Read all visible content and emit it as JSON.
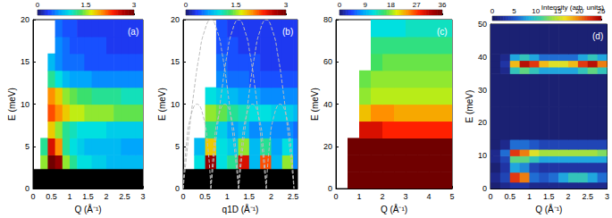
{
  "chart_data": [
    {
      "type": "heatmap",
      "title": "(a)",
      "xlabel": "Q (Å⁻¹)",
      "ylabel": "E (meV)",
      "xlim": [
        0,
        3
      ],
      "xticks": [
        0,
        0.5,
        1,
        1.5,
        2,
        2.5,
        3
      ],
      "ylim": [
        0,
        20
      ],
      "yticks": [
        0,
        5,
        10,
        15,
        20
      ],
      "x_edges": [
        0,
        0.2,
        0.4,
        0.6,
        0.8,
        1,
        1.2,
        1.4,
        1.6,
        1.8,
        2,
        2.2,
        2.4,
        2.6,
        2.8,
        3
      ],
      "y_edges": [
        0,
        2,
        4,
        6,
        8,
        10,
        12,
        14,
        16,
        18,
        20
      ],
      "z": [
        [
          null,
          null,
          null,
          null,
          null,
          null,
          null,
          null,
          null,
          null,
          null,
          null,
          null,
          null,
          null
        ],
        [
          null,
          1.5,
          3,
          2.8,
          1.5,
          1.2,
          1,
          1,
          0.9,
          0.9,
          0.8,
          0.8,
          0.8,
          0.8,
          0.8
        ],
        [
          null,
          1.2,
          2.5,
          2,
          1.2,
          1,
          0.9,
          0.8,
          0.8,
          0.8,
          0.8,
          0.8,
          0.7,
          0.7,
          0.7
        ],
        [
          null,
          null,
          1.8,
          1.5,
          1.2,
          1.1,
          1,
          1,
          1,
          1,
          0.9,
          0.9,
          0.9,
          0.9,
          0.9
        ],
        [
          null,
          null,
          2.2,
          2,
          1.8,
          1.6,
          1.6,
          1.5,
          1.5,
          1.5,
          1.5,
          1.4,
          1.4,
          1.4,
          1.4
        ],
        [
          null,
          null,
          2,
          1.8,
          1.5,
          1.4,
          1.3,
          1.3,
          1.2,
          1.2,
          1.2,
          1.2,
          1.1,
          1.1,
          1.1
        ],
        [
          null,
          null,
          1.2,
          1,
          0.8,
          0.7,
          0.7,
          0.7,
          0.6,
          0.6,
          0.6,
          0.6,
          0.6,
          0.6,
          0.6
        ],
        [
          null,
          null,
          0.8,
          0.6,
          0.5,
          0.5,
          0.5,
          0.4,
          0.4,
          0.4,
          0.4,
          0.4,
          0.4,
          0.4,
          0.4
        ],
        [
          null,
          null,
          null,
          0.6,
          0.5,
          0.4,
          0.4,
          0.4,
          0.4,
          0.4,
          0.3,
          0.3,
          0.3,
          0.3,
          0.3
        ],
        [
          null,
          null,
          null,
          0.5,
          0.4,
          0.4,
          0.3,
          0.3,
          0.3,
          0.3,
          0.3,
          0.3,
          0.3,
          0.3,
          0.3
        ]
      ],
      "masked_below": 2.3,
      "colorbar": {
        "range": [
          0,
          3
        ],
        "ticks": [
          0,
          1.5,
          3
        ],
        "colors": [
          "#1c1c6e",
          "#1e3cff",
          "#00a0ff",
          "#00e0e0",
          "#40e060",
          "#e0f000",
          "#ff9000",
          "#ff2000",
          "#b00000",
          "#700000"
        ]
      }
    },
    {
      "type": "heatmap",
      "title": "(b)",
      "xlabel": "q1D (Å⁻¹)",
      "ylabel": "E (meV)",
      "xlim": [
        0,
        2.6
      ],
      "xticks": [
        0,
        0.5,
        1,
        1.5,
        2,
        2.5
      ],
      "ylim": [
        0,
        20
      ],
      "yticks": [
        0,
        5,
        10,
        15,
        20
      ],
      "x_edges": [
        0,
        0.25,
        0.5,
        0.75,
        1,
        1.25,
        1.5,
        1.75,
        2,
        2.25,
        2.5,
        2.6
      ],
      "y_edges": [
        0,
        2,
        4,
        6,
        8,
        10,
        12,
        14,
        16,
        18,
        20
      ],
      "z": [
        [
          null,
          null,
          null,
          null,
          null,
          null,
          null,
          null,
          null,
          null,
          null
        ],
        [
          null,
          1,
          2.8,
          1,
          1.2,
          2.5,
          0.8,
          2.2,
          0.8,
          1.5,
          0.6
        ],
        [
          null,
          0.8,
          1.8,
          1,
          0.9,
          1.5,
          0.8,
          1.2,
          0.7,
          1,
          0.6
        ],
        [
          null,
          null,
          1.2,
          0.9,
          0.7,
          0.8,
          0.6,
          0.7,
          0.6,
          0.6,
          0.5
        ],
        [
          null,
          null,
          1.5,
          1.4,
          1.2,
          1.1,
          1,
          1,
          0.9,
          0.9,
          0.8
        ],
        [
          null,
          null,
          1,
          0.9,
          0.8,
          0.7,
          0.7,
          0.6,
          0.6,
          0.6,
          0.6
        ],
        [
          null,
          null,
          null,
          0.6,
          0.5,
          0.5,
          0.4,
          0.4,
          0.4,
          0.4,
          0.4
        ],
        [
          null,
          null,
          null,
          0.5,
          0.4,
          0.4,
          0.4,
          0.3,
          0.3,
          0.3,
          0.3
        ],
        [
          null,
          null,
          null,
          0.4,
          0.4,
          0.3,
          0.3,
          0.3,
          0.3,
          0.3,
          0.3
        ],
        [
          null,
          null,
          null,
          0.4,
          0.3,
          0.3,
          0.3,
          0.3,
          0.3,
          0.3,
          0.3
        ]
      ],
      "masked_below": 2.3,
      "curves": [
        {
          "x": [
            0,
            0.12,
            0.27,
            0.37,
            0.47,
            0.63,
            0.79,
            0.89,
            0.99,
            1.14,
            1.26
          ],
          "y": [
            0,
            5.9,
            12.5,
            15.9,
            18.4,
            20,
            18.4,
            15.9,
            12.5,
            5.9,
            0
          ],
          "color": "#bbbbbb",
          "line_style": "dashed"
        },
        {
          "x": [
            0.63,
            0.75,
            0.9,
            1,
            1.1,
            1.26,
            1.42,
            1.52,
            1.62,
            1.77,
            1.89
          ],
          "y": [
            0,
            5.9,
            12.5,
            15.9,
            18.4,
            20,
            18.4,
            15.9,
            12.5,
            5.9,
            0
          ],
          "color": "#bbbbbb",
          "line_style": "dashed"
        },
        {
          "x": [
            1.26,
            1.38,
            1.53,
            1.63,
            1.73,
            1.89,
            2.05,
            2.15,
            2.25,
            2.4,
            2.52
          ],
          "y": [
            0,
            5.9,
            12.5,
            15.9,
            18.4,
            20,
            18.4,
            15.9,
            12.5,
            5.9,
            0
          ],
          "color": "#bbbbbb",
          "line_style": "dashed"
        },
        {
          "x": [
            0,
            0.07,
            0.17,
            0.315,
            0.46,
            0.56,
            0.63
          ],
          "y": [
            0,
            5,
            8.5,
            10,
            8.5,
            5,
            0
          ],
          "color": "#bbbbbb",
          "line_style": "dashed"
        },
        {
          "x": [
            0.63,
            0.7,
            0.8,
            0.945,
            1.09,
            1.19,
            1.26
          ],
          "y": [
            0,
            5,
            8.5,
            10,
            8.5,
            5,
            0
          ],
          "color": "#bbbbbb",
          "line_style": "dashed"
        },
        {
          "x": [
            1.26,
            1.33,
            1.43,
            1.575,
            1.72,
            1.82,
            1.89
          ],
          "y": [
            0,
            5,
            8.5,
            10,
            8.5,
            5,
            0
          ],
          "color": "#bbbbbb",
          "line_style": "dashed"
        },
        {
          "x": [
            1.89,
            1.96,
            2.06,
            2.205,
            2.35,
            2.45,
            2.52
          ],
          "y": [
            0,
            5,
            8.5,
            10,
            8.5,
            5,
            0
          ],
          "color": "#bbbbbb",
          "line_style": "dashed"
        }
      ],
      "colorbar": {
        "range": [
          0,
          3
        ],
        "ticks": [
          0,
          1.5,
          3
        ],
        "colors": [
          "#1c1c6e",
          "#1e3cff",
          "#00a0ff",
          "#00e0e0",
          "#40e060",
          "#e0f000",
          "#ff9000",
          "#ff2000",
          "#b00000",
          "#700000"
        ]
      }
    },
    {
      "type": "heatmap",
      "title": "(c)",
      "xlabel": "Q (Å⁻¹)",
      "ylabel": "E (meV)",
      "xlim": [
        0,
        5
      ],
      "xticks": [
        0,
        1,
        2,
        3,
        4,
        5
      ],
      "ylim": [
        0,
        80
      ],
      "yticks": [
        0,
        20,
        40,
        60,
        80
      ],
      "x_edges": [
        0,
        0.5,
        1,
        1.5,
        2,
        2.5,
        3,
        3.5,
        4,
        4.5,
        5
      ],
      "y_edges": [
        0,
        8,
        16,
        24,
        32,
        40,
        48,
        56,
        64,
        72,
        80
      ],
      "z": [
        [
          null,
          40,
          40,
          40,
          40,
          40,
          40,
          40,
          40,
          40
        ],
        [
          null,
          40,
          40,
          40,
          40,
          40,
          40,
          40,
          40,
          40
        ],
        [
          null,
          38,
          38,
          36,
          36,
          36,
          36,
          36,
          36,
          36
        ],
        [
          null,
          null,
          30,
          30,
          28,
          28,
          28,
          28,
          28,
          28
        ],
        [
          null,
          null,
          22,
          24,
          24,
          23,
          23,
          23,
          23,
          23
        ],
        [
          null,
          null,
          18,
          19,
          19,
          19,
          19,
          19,
          19,
          19
        ],
        [
          null,
          null,
          17,
          18,
          18,
          18,
          18,
          18,
          18,
          18
        ],
        [
          null,
          null,
          null,
          16,
          17,
          17,
          17,
          17,
          17,
          17
        ],
        [
          null,
          null,
          null,
          15,
          15,
          15,
          15,
          15,
          15,
          15
        ],
        [
          null,
          null,
          null,
          12,
          12,
          12,
          13,
          13,
          13,
          13
        ]
      ],
      "colorbar": {
        "range": [
          0,
          36
        ],
        "ticks": [
          0,
          9,
          18,
          27,
          36
        ],
        "colors": [
          "#1c1c6e",
          "#1e3cff",
          "#00a0ff",
          "#00e0e0",
          "#40e060",
          "#e0f000",
          "#ff9000",
          "#ff2000",
          "#b00000",
          "#700000"
        ]
      }
    },
    {
      "type": "heatmap",
      "title": "(d)",
      "xlabel": "Q (Å⁻¹)",
      "ylabel": "E (meV)",
      "xlim": [
        0,
        3
      ],
      "xticks": [
        0,
        0.5,
        1,
        1.5,
        2,
        2.5,
        3
      ],
      "ylim": [
        0,
        50
      ],
      "yticks": [
        0,
        10,
        20,
        30,
        40,
        50
      ],
      "x_edges": [
        0,
        0.25,
        0.5,
        0.75,
        1,
        1.25,
        1.5,
        1.75,
        2,
        2.25,
        2.5,
        2.75,
        3
      ],
      "y_edges": [
        0,
        2,
        5,
        8,
        10,
        12,
        15,
        25,
        35,
        37,
        39,
        41,
        50
      ],
      "z": [
        [
          1,
          2,
          3,
          3,
          2,
          2,
          2,
          2,
          2,
          2,
          2,
          2
        ],
        [
          2,
          4,
          22,
          20,
          6,
          5,
          6,
          8,
          10,
          10,
          8,
          6
        ],
        [
          1,
          3,
          8,
          7,
          4,
          3,
          3,
          3,
          3,
          3,
          3,
          3
        ],
        [
          2,
          4,
          12,
          12,
          10,
          8,
          8,
          8,
          8,
          8,
          8,
          8
        ],
        [
          2,
          6,
          22,
          20,
          16,
          14,
          14,
          14,
          14,
          14,
          14,
          13
        ],
        [
          1,
          2,
          6,
          6,
          5,
          4,
          4,
          4,
          4,
          4,
          4,
          4
        ],
        [
          1,
          1,
          1,
          1,
          1,
          1,
          1,
          1,
          1,
          1,
          1,
          1
        ],
        [
          1,
          1,
          1,
          1,
          1,
          1,
          1,
          1,
          1,
          1,
          1,
          1
        ],
        [
          1,
          2,
          10,
          12,
          10,
          8,
          8,
          8,
          8,
          10,
          12,
          10
        ],
        [
          1,
          3,
          18,
          24,
          22,
          18,
          16,
          16,
          18,
          22,
          24,
          20
        ],
        [
          1,
          2,
          8,
          10,
          8,
          6,
          6,
          6,
          6,
          8,
          10,
          8
        ],
        [
          1,
          1,
          1,
          1,
          1,
          1,
          1,
          1,
          1,
          1,
          1,
          1
        ]
      ],
      "colorbar": {
        "range": [
          0,
          25
        ],
        "ticks": [
          0,
          5,
          10,
          15,
          20,
          25
        ],
        "label": "Intensity (arb. units)",
        "colors": [
          "#18185a",
          "#2030a0",
          "#2060d0",
          "#20b0e0",
          "#40d0a0",
          "#a0e040",
          "#f0e020",
          "#f09010",
          "#e03010",
          "#a00000"
        ]
      }
    }
  ]
}
